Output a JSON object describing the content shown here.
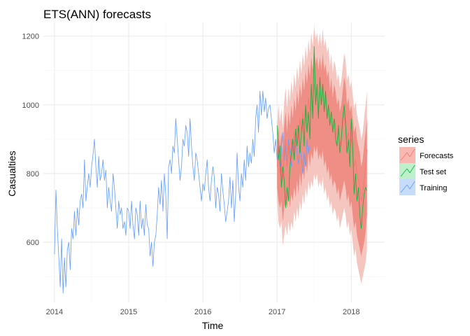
{
  "chart_data": {
    "type": "line",
    "title": "ETS(ANN) forecasts",
    "xlabel": "Time",
    "ylabel": "Casualties",
    "xlim": [
      2013.85,
      2018.45
    ],
    "ylim": [
      425,
      1240
    ],
    "x_ticks": [
      2014,
      2015,
      2016,
      2017,
      2018
    ],
    "x_tick_labels": [
      "2014",
      "2015",
      "2016",
      "2017",
      "2018"
    ],
    "y_ticks": [
      600,
      800,
      1000,
      1200
    ],
    "y_tick_labels": [
      "600",
      "800",
      "1000",
      "1200"
    ],
    "grid": true,
    "legend": {
      "title": "series",
      "placement": "right",
      "entries": [
        "Forecasts",
        "Test set",
        "Training"
      ]
    },
    "colors": {
      "Forecasts": "#f8766d",
      "Test set": "#00ba38",
      "Training": "#619cff",
      "interval_80": "#ee8e84",
      "interval_95": "#f5c5bf"
    },
    "series": [
      {
        "name": "Training",
        "x_start": 2014.0,
        "x_step": 0.01923,
        "values": [
          565,
          752,
          640,
          560,
          470,
          610,
          452,
          555,
          470,
          580,
          600,
          520,
          640,
          610,
          690,
          620,
          700,
          650,
          720,
          740,
          700,
          840,
          720,
          760,
          800,
          760,
          820,
          855,
          900,
          820,
          760,
          850,
          780,
          800,
          840,
          780,
          810,
          700,
          760,
          720,
          690,
          800,
          760,
          700,
          640,
          720,
          680,
          700,
          640,
          660,
          620,
          700,
          690,
          640,
          720,
          650,
          610,
          700,
          680,
          620,
          720,
          640,
          670,
          620,
          710,
          650,
          640,
          560,
          600,
          530,
          600,
          620,
          680,
          760,
          710,
          780,
          690,
          800,
          740,
          610,
          820,
          840,
          800,
          880,
          860,
          960,
          900,
          840,
          780,
          820,
          900,
          880,
          940,
          920,
          850,
          960,
          880,
          820,
          780,
          860,
          840,
          800,
          760,
          720,
          770,
          750,
          800,
          840,
          760,
          720,
          780,
          820,
          790,
          700,
          760,
          740,
          690,
          800,
          750,
          710,
          660,
          690,
          720,
          790,
          700,
          780,
          660,
          740,
          860,
          760,
          720,
          800,
          760,
          840,
          780,
          880,
          820,
          860,
          830,
          900,
          850,
          960,
          1000,
          920,
          1040,
          970,
          1040,
          980,
          1020,
          960,
          990,
          1000,
          960,
          920,
          860,
          900,
          840,
          880,
          820,
          860,
          920,
          840,
          880,
          820,
          900,
          860,
          820,
          880,
          840,
          900,
          860,
          830,
          880,
          850,
          800,
          860,
          820,
          900,
          860,
          880
        ]
      },
      {
        "name": "Test set",
        "x_start": 2017.0,
        "x_step": 0.01923,
        "values": [
          940,
          840,
          880,
          760,
          820,
          780,
          700,
          760,
          720,
          820,
          860,
          900,
          840,
          930,
          880,
          940,
          860,
          920,
          960,
          880,
          1000,
          920,
          980,
          900,
          1060,
          960,
          1170,
          1000,
          1060,
          960,
          1080,
          1000,
          1060,
          980,
          1040,
          960,
          1000,
          940,
          980,
          920,
          960,
          900,
          880,
          940,
          860,
          900,
          960,
          1000,
          940,
          860,
          900,
          820,
          960,
          880,
          740,
          800,
          720,
          760,
          680,
          640,
          700,
          740,
          760,
          750
        ]
      },
      {
        "name": "Forecasts",
        "x_start": 2017.0,
        "x_step": 0.01923,
        "values": [
          820,
          880,
          800,
          840,
          780,
          860,
          900,
          820,
          880,
          840,
          900,
          860,
          920,
          880,
          940,
          900,
          960,
          920,
          980,
          940,
          1000,
          960,
          1020,
          980,
          1040,
          1000,
          1060,
          1020,
          1040,
          980,
          1040,
          1000,
          1050,
          980,
          1020,
          960,
          1000,
          940,
          980,
          920,
          960,
          940,
          900,
          920,
          880,
          900,
          940,
          980,
          960,
          900,
          920,
          880,
          900,
          860,
          820,
          840,
          800,
          780,
          760,
          720,
          740,
          780,
          820,
          870
        ]
      }
    ],
    "intervals": {
      "x_start": 2017.0,
      "x_step": 0.01923,
      "lo80": [
        760,
        720,
        700,
        720,
        660,
        700,
        720,
        700,
        740,
        700,
        740,
        720,
        760,
        730,
        780,
        740,
        800,
        760,
        820,
        780,
        840,
        800,
        860,
        820,
        860,
        840,
        880,
        860,
        880,
        840,
        860,
        840,
        870,
        820,
        840,
        800,
        820,
        780,
        800,
        760,
        780,
        770,
        740,
        760,
        720,
        740,
        760,
        780,
        760,
        720,
        740,
        700,
        720,
        680,
        640,
        660,
        620,
        600,
        580,
        560,
        580,
        600,
        630,
        680
      ],
      "hi80": [
        900,
        940,
        880,
        920,
        860,
        940,
        980,
        920,
        980,
        940,
        1000,
        960,
        1020,
        980,
        1040,
        1000,
        1060,
        1020,
        1080,
        1040,
        1100,
        1060,
        1120,
        1080,
        1140,
        1100,
        1160,
        1120,
        1140,
        1100,
        1140,
        1100,
        1150,
        1100,
        1120,
        1080,
        1100,
        1040,
        1080,
        1020,
        1060,
        1040,
        1000,
        1020,
        980,
        1000,
        1040,
        1080,
        1060,
        1000,
        1020,
        980,
        1000,
        960,
        920,
        940,
        900,
        880,
        860,
        820,
        840,
        880,
        920,
        960
      ],
      "lo95": [
        720,
        660,
        640,
        660,
        590,
        620,
        650,
        620,
        660,
        630,
        660,
        640,
        690,
        660,
        700,
        670,
        720,
        690,
        740,
        710,
        760,
        730,
        780,
        750,
        780,
        760,
        800,
        780,
        800,
        760,
        780,
        760,
        790,
        740,
        760,
        720,
        740,
        700,
        720,
        680,
        700,
        690,
        660,
        680,
        640,
        660,
        680,
        700,
        680,
        640,
        660,
        620,
        640,
        600,
        560,
        580,
        540,
        520,
        500,
        480,
        500,
        520,
        540,
        580
      ],
      "hi95": [
        940,
        1000,
        950,
        990,
        930,
        1010,
        1050,
        990,
        1050,
        1010,
        1070,
        1030,
        1090,
        1050,
        1110,
        1070,
        1130,
        1090,
        1150,
        1110,
        1170,
        1130,
        1190,
        1150,
        1210,
        1170,
        1230,
        1190,
        1210,
        1170,
        1210,
        1170,
        1220,
        1170,
        1190,
        1150,
        1170,
        1110,
        1150,
        1090,
        1130,
        1110,
        1070,
        1090,
        1050,
        1070,
        1110,
        1150,
        1130,
        1070,
        1090,
        1050,
        1070,
        1030,
        990,
        1010,
        970,
        950,
        930,
        900,
        920,
        960,
        1000,
        1040
      ]
    }
  }
}
